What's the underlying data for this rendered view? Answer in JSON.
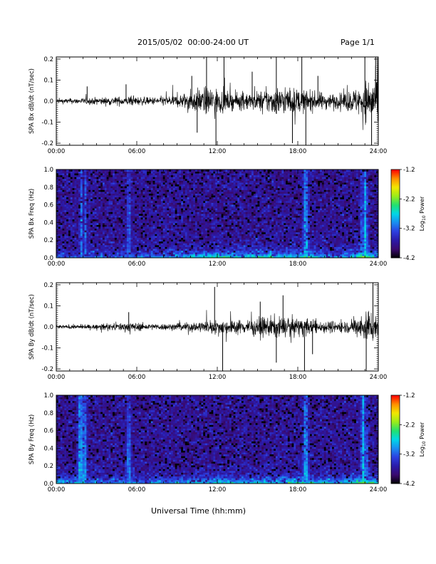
{
  "header": {
    "title": "2015/05/02  00:00-24:00 UT",
    "page": "Page 1/1"
  },
  "xlabel": "Universal Time (hh:mm)",
  "colors": {
    "trace": "#000000",
    "spectrogram_colormap": [
      "#000000",
      "#3a0a6e",
      "#2b1aa8",
      "#2c3fe0",
      "#1a8cf0",
      "#00d6e8",
      "#22e070",
      "#9aec1a",
      "#f2e800",
      "#ff9000",
      "#ff0000"
    ]
  },
  "chart_data": [
    {
      "type": "line",
      "panel": "Bx time series",
      "ylabel": "SPA Bx dB/dt (nT/sec)",
      "xticks": [
        "00:00",
        "06:00",
        "12:00",
        "18:00",
        "24:00"
      ],
      "xlim": [
        0,
        24
      ],
      "yticks": [
        "-0.2",
        "-0.1",
        "0.0",
        "0.1",
        "0.2"
      ],
      "ylim": [
        -0.21,
        0.21
      ],
      "x_unit": "hours UT",
      "envelope": [
        {
          "x": 0,
          "amp": 0.02
        },
        {
          "x": 2,
          "amp": 0.025
        },
        {
          "x": 3,
          "amp": 0.03
        },
        {
          "x": 5.5,
          "amp": 0.04
        },
        {
          "x": 7,
          "amp": 0.03
        },
        {
          "x": 9,
          "amp": 0.05
        },
        {
          "x": 10.5,
          "amp": 0.1
        },
        {
          "x": 11.5,
          "amp": 0.12
        },
        {
          "x": 13,
          "amp": 0.07
        },
        {
          "x": 15,
          "amp": 0.08
        },
        {
          "x": 16.5,
          "amp": 0.12
        },
        {
          "x": 18,
          "amp": 0.1
        },
        {
          "x": 19,
          "amp": 0.08
        },
        {
          "x": 21,
          "amp": 0.06
        },
        {
          "x": 22.7,
          "amp": 0.12
        },
        {
          "x": 23.3,
          "amp": 0.2
        },
        {
          "x": 24,
          "amp": 0.2
        }
      ],
      "spikes": [
        {
          "x": 2.3,
          "y": 0.07
        },
        {
          "x": 5.2,
          "y": 0.08
        },
        {
          "x": 10.1,
          "y": 0.12
        },
        {
          "x": 10.5,
          "y": -0.15
        },
        {
          "x": 11.2,
          "y": 0.21
        },
        {
          "x": 11.9,
          "y": -0.21
        },
        {
          "x": 12.5,
          "y": 0.21
        },
        {
          "x": 14.6,
          "y": 0.14
        },
        {
          "x": 16.4,
          "y": 0.21
        },
        {
          "x": 17.6,
          "y": -0.2
        },
        {
          "x": 18.3,
          "y": 0.21
        },
        {
          "x": 18.6,
          "y": -0.21
        },
        {
          "x": 19.5,
          "y": 0.12
        },
        {
          "x": 23.0,
          "y": 0.21
        },
        {
          "x": 23.5,
          "y": -0.21
        },
        {
          "x": 23.8,
          "y": 0.21
        }
      ]
    },
    {
      "type": "heatmap",
      "panel": "Bx spectrogram",
      "ylabel": "SPA Bx Freq (Hz)",
      "xticks": [
        "00:00",
        "06:00",
        "12:00",
        "18:00",
        "24:00"
      ],
      "xlim": [
        0,
        24
      ],
      "yticks": [
        "0.0",
        "0.2",
        "0.4",
        "0.6",
        "0.8",
        "1.0"
      ],
      "ylim": [
        0,
        1.0
      ],
      "colorbar": {
        "label": "Log10 Power",
        "label_base": "Log",
        "label_sub": "10",
        "label_rest": " Power",
        "ticks": [
          "-1.2",
          "-2.2",
          "-3.2",
          "-4.2"
        ],
        "range": [
          -4.2,
          -1.2
        ]
      },
      "background_level": -3.7,
      "bright_bands": [
        {
          "x": 1.9,
          "level": -3.0
        },
        {
          "x": 2.2,
          "level": -3.1
        },
        {
          "x": 5.4,
          "level": -3.2
        },
        {
          "x": 18.6,
          "level": -2.9
        },
        {
          "x": 23.0,
          "level": -2.7
        }
      ],
      "low_freq_enhancement": [
        {
          "x": 0,
          "level": -3.2
        },
        {
          "x": 6,
          "level": -3.0
        },
        {
          "x": 9,
          "level": -2.7
        },
        {
          "x": 12,
          "level": -2.4
        },
        {
          "x": 15,
          "level": -2.5
        },
        {
          "x": 18.5,
          "level": -2.4
        },
        {
          "x": 21,
          "level": -2.9
        },
        {
          "x": 23,
          "level": -1.9
        },
        {
          "x": 24,
          "level": -2.6
        }
      ]
    },
    {
      "type": "line",
      "panel": "By time series",
      "ylabel": "SPA By dB/dt (nT/sec)",
      "xticks": [
        "00:00",
        "06:00",
        "12:00",
        "18:00",
        "24:00"
      ],
      "xlim": [
        0,
        24
      ],
      "yticks": [
        "-0.2",
        "-0.1",
        "0.0",
        "0.1",
        "0.2"
      ],
      "ylim": [
        -0.21,
        0.21
      ],
      "x_unit": "hours UT",
      "envelope": [
        {
          "x": 0,
          "amp": 0.015
        },
        {
          "x": 3,
          "amp": 0.02
        },
        {
          "x": 5.5,
          "amp": 0.04
        },
        {
          "x": 7,
          "amp": 0.025
        },
        {
          "x": 9,
          "amp": 0.03
        },
        {
          "x": 11,
          "amp": 0.05
        },
        {
          "x": 12,
          "amp": 0.06
        },
        {
          "x": 14,
          "amp": 0.06
        },
        {
          "x": 16,
          "amp": 0.09
        },
        {
          "x": 17,
          "amp": 0.08
        },
        {
          "x": 18.5,
          "amp": 0.07
        },
        {
          "x": 20,
          "amp": 0.05
        },
        {
          "x": 22,
          "amp": 0.05
        },
        {
          "x": 23.3,
          "amp": 0.15
        },
        {
          "x": 24,
          "amp": 0.1
        }
      ],
      "spikes": [
        {
          "x": 5.4,
          "y": 0.07
        },
        {
          "x": 11.8,
          "y": 0.19
        },
        {
          "x": 12.4,
          "y": -0.21
        },
        {
          "x": 15.2,
          "y": 0.12
        },
        {
          "x": 16.4,
          "y": -0.17
        },
        {
          "x": 16.9,
          "y": 0.15
        },
        {
          "x": 18.5,
          "y": -0.21
        },
        {
          "x": 19.1,
          "y": -0.13
        },
        {
          "x": 23.1,
          "y": -0.21
        },
        {
          "x": 23.6,
          "y": 0.21
        }
      ]
    },
    {
      "type": "heatmap",
      "panel": "By spectrogram",
      "ylabel": "SPA By Freq (Hz)",
      "xticks": [
        "00:00",
        "06:00",
        "12:00",
        "18:00",
        "24:00"
      ],
      "xlim": [
        0,
        24
      ],
      "yticks": [
        "0.0",
        "0.2",
        "0.4",
        "0.6",
        "0.8",
        "1.0"
      ],
      "ylim": [
        0,
        1.0
      ],
      "colorbar": {
        "label": "Log10 Power",
        "label_base": "Log",
        "label_sub": "10",
        "label_rest": " Power",
        "ticks": [
          "-1.2",
          "-2.2",
          "-3.2",
          "-4.2"
        ],
        "range": [
          -4.2,
          -1.2
        ]
      },
      "background_level": -3.7,
      "bright_bands": [
        {
          "x": 1.8,
          "level": -2.9
        },
        {
          "x": 2.1,
          "level": -3.0
        },
        {
          "x": 5.4,
          "level": -3.1
        },
        {
          "x": 18.6,
          "level": -2.9
        },
        {
          "x": 22.9,
          "level": -2.7
        }
      ],
      "low_freq_enhancement": [
        {
          "x": 0,
          "level": -2.6
        },
        {
          "x": 3,
          "level": -2.9
        },
        {
          "x": 6,
          "level": -3.0
        },
        {
          "x": 9,
          "level": -2.8
        },
        {
          "x": 12,
          "level": -2.6
        },
        {
          "x": 15,
          "level": -2.6
        },
        {
          "x": 18.5,
          "level": -2.3
        },
        {
          "x": 21,
          "level": -2.8
        },
        {
          "x": 23,
          "level": -1.9
        },
        {
          "x": 24,
          "level": -2.6
        }
      ]
    }
  ]
}
